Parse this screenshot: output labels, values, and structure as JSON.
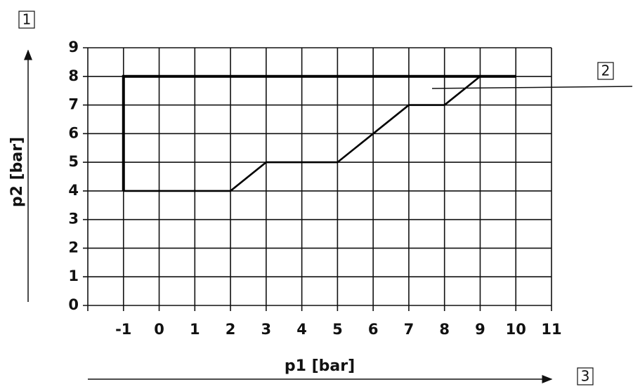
{
  "chart_data": {
    "type": "line",
    "xlabel": "p1 [bar]",
    "ylabel": "p2 [bar]",
    "xlim": [
      -2,
      11
    ],
    "xticks": [
      -1,
      0,
      1,
      2,
      3,
      4,
      5,
      6,
      7,
      8,
      9,
      10,
      11
    ],
    "ylim": [
      0,
      9
    ],
    "yticks": [
      0,
      1,
      2,
      3,
      4,
      5,
      6,
      7,
      8,
      9
    ],
    "grid": true,
    "series": [
      {
        "color": "#000000",
        "x": [
          -1,
          -1,
          10
        ],
        "values": [
          4,
          8,
          8
        ]
      },
      {
        "color": "#000000",
        "x": [
          -1,
          2,
          3,
          5,
          7,
          8,
          9,
          10
        ],
        "values": [
          4,
          4,
          5,
          5,
          7,
          7,
          8,
          8
        ]
      }
    ],
    "annotations": [
      "1",
      "2",
      "3"
    ]
  }
}
